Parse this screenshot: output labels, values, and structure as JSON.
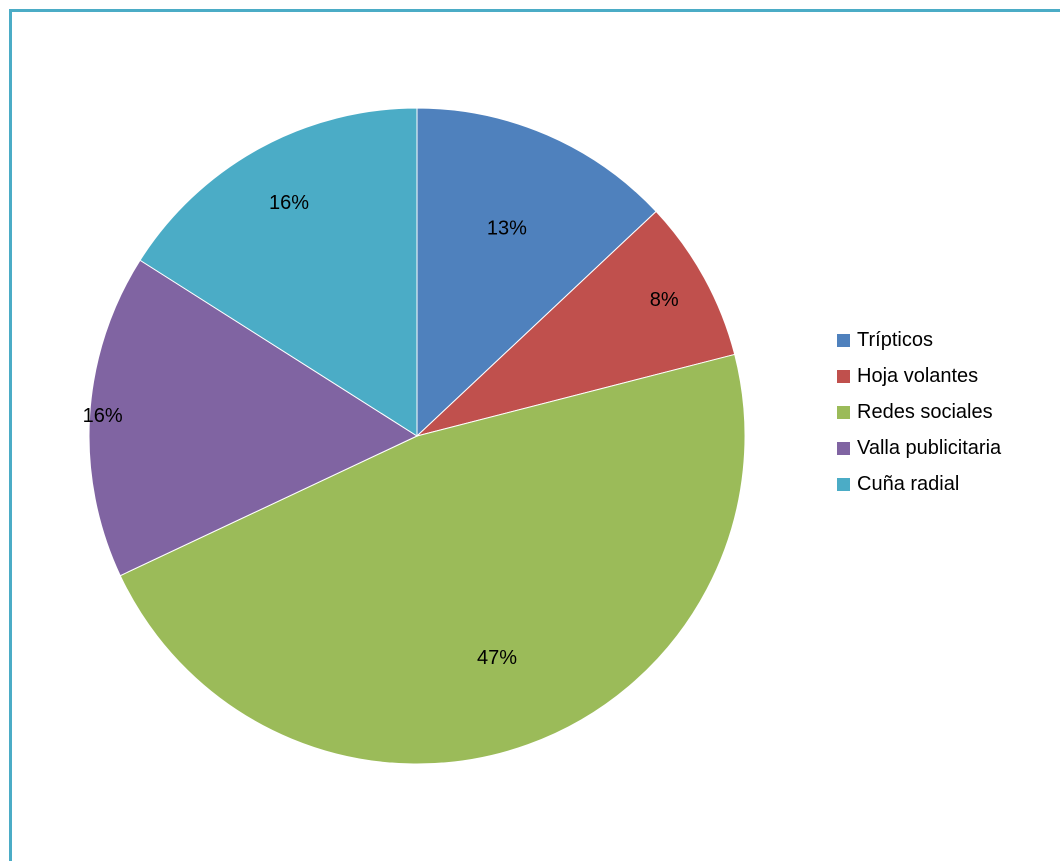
{
  "chart_data": {
    "type": "pie",
    "categories": [
      "Trípticos",
      "Hoja volantes",
      "Redes sociales",
      "Valla publicitaria",
      "Cuña radial"
    ],
    "values": [
      13,
      8,
      47,
      16,
      16
    ],
    "labels": [
      "13%",
      "8%",
      "47%",
      "16%",
      "16%"
    ],
    "colors": [
      "#4f81bd",
      "#c0504d",
      "#9bbb59",
      "#8064a2",
      "#4bacc6"
    ],
    "legend_position": "right",
    "start_angle": "12 o'clock",
    "direction": "clockwise"
  },
  "frame": {
    "border_color": "#4bacc6"
  }
}
